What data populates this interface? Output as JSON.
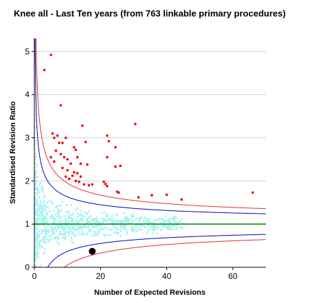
{
  "chart_data": {
    "type": "scatter",
    "title": "Knee all - Last Ten years (from 763 linkable primary procedures)",
    "xlabel": "Number of Expected Revisions",
    "ylabel": "Standardised Revision Ratio",
    "xlim": [
      0,
      70
    ],
    "ylim": [
      0,
      5.3
    ],
    "x_ticks": [
      0,
      20,
      40,
      60
    ],
    "y_ticks": [
      0,
      1,
      2,
      3,
      4,
      5
    ],
    "grid": "horizontal",
    "reference_line": {
      "y": 1,
      "color": "#008000"
    },
    "control_limits": [
      {
        "name": "inner",
        "color": "#0000cc",
        "z": 2.0
      },
      {
        "name": "outer",
        "color": "#e03030",
        "z": 3.0
      }
    ],
    "colors": {
      "background_points": "#aaf2f2",
      "outlier_points": "#ee0000",
      "highlight_point": "#000000"
    },
    "highlight_point": {
      "x": 17.5,
      "y": 0.37
    },
    "outlier_points": [
      [
        5,
        4.92
      ],
      [
        3,
        4.57
      ],
      [
        8,
        3.75
      ],
      [
        30.5,
        3.32
      ],
      [
        14.5,
        3.28
      ],
      [
        22,
        3.05
      ],
      [
        5.5,
        3.1
      ],
      [
        7,
        3.05
      ],
      [
        9.5,
        3.0
      ],
      [
        6,
        3.0
      ],
      [
        8.5,
        2.88
      ],
      [
        15.5,
        2.9
      ],
      [
        22.5,
        2.92
      ],
      [
        7.5,
        2.88
      ],
      [
        12,
        2.78
      ],
      [
        12.5,
        2.72
      ],
      [
        24.5,
        2.78
      ],
      [
        6.5,
        2.7
      ],
      [
        8,
        2.62
      ],
      [
        9,
        2.55
      ],
      [
        10,
        2.5
      ],
      [
        13,
        2.55
      ],
      [
        22,
        2.55
      ],
      [
        5,
        2.55
      ],
      [
        6,
        2.45
      ],
      [
        11,
        2.4
      ],
      [
        14,
        2.4
      ],
      [
        16,
        2.38
      ],
      [
        24.5,
        2.33
      ],
      [
        26,
        2.35
      ],
      [
        8.5,
        2.3
      ],
      [
        10,
        2.25
      ],
      [
        12,
        2.2
      ],
      [
        13,
        2.18
      ],
      [
        11.5,
        2.12
      ],
      [
        9.5,
        2.1
      ],
      [
        14,
        2.1
      ],
      [
        10.5,
        2.05
      ],
      [
        12.5,
        2.0
      ],
      [
        13.5,
        1.98
      ],
      [
        15,
        1.92
      ],
      [
        16.5,
        1.9
      ],
      [
        17.5,
        1.92
      ],
      [
        21,
        1.98
      ],
      [
        21.5,
        1.93
      ],
      [
        22,
        1.88
      ],
      [
        25,
        1.75
      ],
      [
        25.5,
        1.73
      ],
      [
        31.5,
        1.62
      ],
      [
        35.5,
        1.67
      ],
      [
        40,
        1.68
      ],
      [
        44.5,
        1.57
      ],
      [
        66,
        1.73
      ]
    ]
  }
}
